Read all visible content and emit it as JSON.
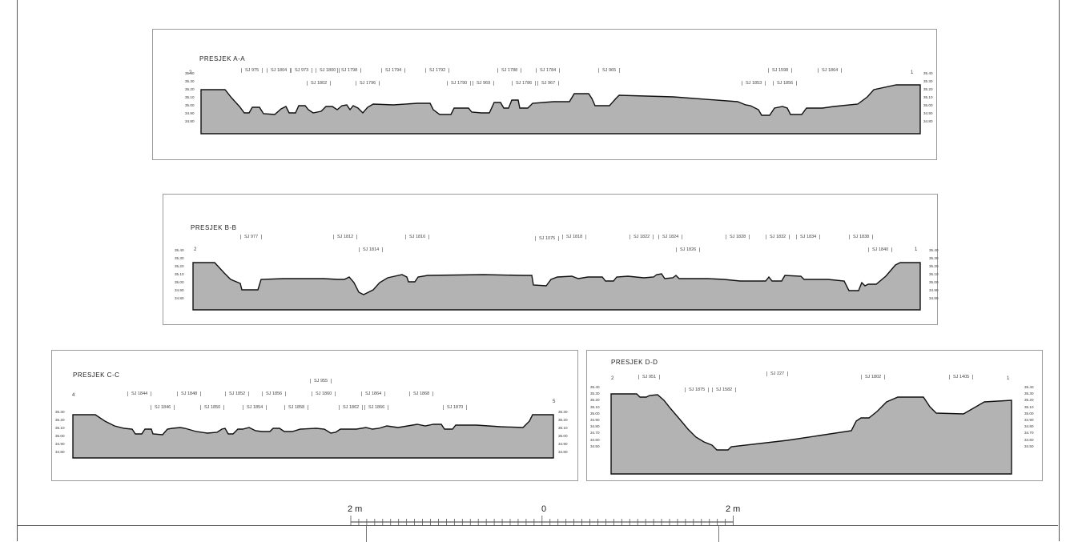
{
  "sections": {
    "aa": {
      "title": "PRESJEK A-A",
      "left_end": "2",
      "right_end": "1",
      "elevations_left": [
        "35.40",
        "35.30",
        "35.20",
        "35.10",
        "35.00",
        "34.90",
        "34.80"
      ],
      "elevations_right": [
        "35.40",
        "35.30",
        "35.20",
        "35.10",
        "35.00",
        "34.90",
        "34.80"
      ],
      "su_labels": [
        "SJ 975",
        "SJ 1804",
        "SJ 973",
        "SJ 1800",
        "SJ 1798",
        "SJ 1802",
        "SJ 1796",
        "SJ 1794",
        "SJ 1792",
        "SJ 1790",
        "SJ 969",
        "SJ 1788",
        "SJ 1786",
        "SJ 1784",
        "SJ 967",
        "SJ 965",
        "SJ 1853",
        "SJ 1598",
        "SJ 1856",
        "SJ 1864"
      ]
    },
    "bb": {
      "title": "PRESJEK B-B",
      "left_end": "2",
      "right_end": "1",
      "elevations_left": [
        "35.40",
        "35.30",
        "35.20",
        "35.10",
        "35.00",
        "34.90",
        "34.80"
      ],
      "elevations_right": [
        "35.40",
        "35.30",
        "35.20",
        "35.10",
        "35.00",
        "34.90",
        "34.80"
      ],
      "su_labels": [
        "SJ 977",
        "SJ 1812",
        "SJ 1814",
        "SJ 1816",
        "SJ 1075",
        "SJ 1818",
        "SJ 1822",
        "SJ 1824",
        "SJ 1826",
        "SJ 1828",
        "SJ 1832",
        "SJ 1834",
        "SJ 1838",
        "SJ 1840"
      ]
    },
    "cc": {
      "title": "PRESJEK C-C",
      "left_end": "4",
      "right_end": "5",
      "elevations_left": [
        "35.30",
        "35.20",
        "35.10",
        "35.00",
        "34.90",
        "34.80"
      ],
      "elevations_right": [
        "35.30",
        "35.20",
        "35.10",
        "35.00",
        "34.90",
        "34.80"
      ],
      "su_labels": [
        "SJ 955",
        "SJ 1844",
        "SJ 1848",
        "SJ 1846",
        "SJ 1850",
        "SJ 1852",
        "SJ 1854",
        "SJ 1856",
        "SJ 1858",
        "SJ 1860",
        "SJ 1862",
        "SJ 1864",
        "SJ 1866",
        "SJ 1868",
        "SJ 1870"
      ]
    },
    "dd": {
      "title": "PRESJEK D-D",
      "left_end": "2",
      "right_end": "1",
      "elevations_left": [
        "35.40",
        "35.30",
        "35.20",
        "35.10",
        "35.00",
        "34.90",
        "34.80",
        "34.70",
        "34.60",
        "34.50"
      ],
      "elevations_right": [
        "35.40",
        "35.30",
        "35.20",
        "35.10",
        "35.00",
        "34.90",
        "34.80",
        "34.70",
        "34.60",
        "34.50"
      ],
      "su_labels": [
        "SJ 951",
        "SJ 227",
        "SJ 1875",
        "SJ 1582",
        "SJ 1802",
        "SJ 1405"
      ]
    }
  },
  "scale_bar": {
    "left_label": "2 m",
    "center_label": "0",
    "right_label": "2 m"
  },
  "colors": {
    "fill": "#b3b3b3",
    "stroke": "#111111",
    "frame": "#9a9a9a"
  }
}
